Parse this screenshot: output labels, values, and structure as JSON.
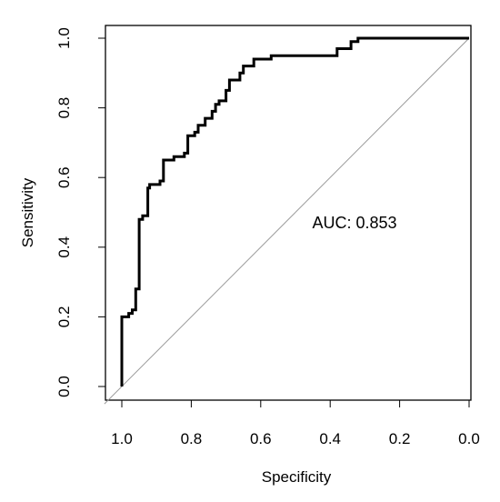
{
  "chart_data": {
    "type": "line",
    "title": "",
    "xlabel": "Specificity",
    "ylabel": "Sensitivity",
    "xlim": [
      1.0,
      0.0
    ],
    "ylim": [
      0.0,
      1.0
    ],
    "x_reversed": true,
    "grid": false,
    "legend": "none",
    "xticks": [
      "1.0",
      "0.8",
      "0.6",
      "0.4",
      "0.2",
      "0.0"
    ],
    "yticks": [
      "0.0",
      "0.2",
      "0.4",
      "0.6",
      "0.8",
      "1.0"
    ],
    "annotation": "AUC: 0.853",
    "annotation_anchor": {
      "x": 0.5,
      "y": 0.47
    },
    "series": [
      {
        "role": "roc-curve",
        "color": "#000000",
        "points": [
          {
            "x": 1.0,
            "y": 0.0
          },
          {
            "x": 1.0,
            "y": 0.2
          },
          {
            "x": 0.98,
            "y": 0.2
          },
          {
            "x": 0.98,
            "y": 0.21
          },
          {
            "x": 0.97,
            "y": 0.21
          },
          {
            "x": 0.97,
            "y": 0.22
          },
          {
            "x": 0.96,
            "y": 0.22
          },
          {
            "x": 0.96,
            "y": 0.28
          },
          {
            "x": 0.95,
            "y": 0.28
          },
          {
            "x": 0.95,
            "y": 0.48
          },
          {
            "x": 0.94,
            "y": 0.48
          },
          {
            "x": 0.94,
            "y": 0.49
          },
          {
            "x": 0.925,
            "y": 0.49
          },
          {
            "x": 0.925,
            "y": 0.57
          },
          {
            "x": 0.92,
            "y": 0.57
          },
          {
            "x": 0.92,
            "y": 0.58
          },
          {
            "x": 0.89,
            "y": 0.58
          },
          {
            "x": 0.89,
            "y": 0.59
          },
          {
            "x": 0.88,
            "y": 0.59
          },
          {
            "x": 0.88,
            "y": 0.65
          },
          {
            "x": 0.85,
            "y": 0.65
          },
          {
            "x": 0.85,
            "y": 0.66
          },
          {
            "x": 0.82,
            "y": 0.66
          },
          {
            "x": 0.82,
            "y": 0.67
          },
          {
            "x": 0.81,
            "y": 0.67
          },
          {
            "x": 0.81,
            "y": 0.72
          },
          {
            "x": 0.79,
            "y": 0.72
          },
          {
            "x": 0.79,
            "y": 0.73
          },
          {
            "x": 0.78,
            "y": 0.73
          },
          {
            "x": 0.78,
            "y": 0.75
          },
          {
            "x": 0.76,
            "y": 0.75
          },
          {
            "x": 0.76,
            "y": 0.77
          },
          {
            "x": 0.74,
            "y": 0.77
          },
          {
            "x": 0.74,
            "y": 0.79
          },
          {
            "x": 0.73,
            "y": 0.79
          },
          {
            "x": 0.73,
            "y": 0.81
          },
          {
            "x": 0.72,
            "y": 0.81
          },
          {
            "x": 0.72,
            "y": 0.82
          },
          {
            "x": 0.7,
            "y": 0.82
          },
          {
            "x": 0.7,
            "y": 0.85
          },
          {
            "x": 0.69,
            "y": 0.85
          },
          {
            "x": 0.69,
            "y": 0.88
          },
          {
            "x": 0.66,
            "y": 0.88
          },
          {
            "x": 0.66,
            "y": 0.9
          },
          {
            "x": 0.65,
            "y": 0.9
          },
          {
            "x": 0.65,
            "y": 0.92
          },
          {
            "x": 0.62,
            "y": 0.92
          },
          {
            "x": 0.62,
            "y": 0.94
          },
          {
            "x": 0.57,
            "y": 0.94
          },
          {
            "x": 0.57,
            "y": 0.95
          },
          {
            "x": 0.38,
            "y": 0.95
          },
          {
            "x": 0.38,
            "y": 0.97
          },
          {
            "x": 0.34,
            "y": 0.97
          },
          {
            "x": 0.34,
            "y": 0.99
          },
          {
            "x": 0.32,
            "y": 0.99
          },
          {
            "x": 0.32,
            "y": 1.0
          },
          {
            "x": 0.0,
            "y": 1.0
          }
        ]
      },
      {
        "role": "reference-diagonal",
        "color": "#9a9a9a",
        "points": [
          {
            "x": 1.05,
            "y": -0.05
          },
          {
            "x": 0.0,
            "y": 1.0
          }
        ]
      }
    ]
  }
}
